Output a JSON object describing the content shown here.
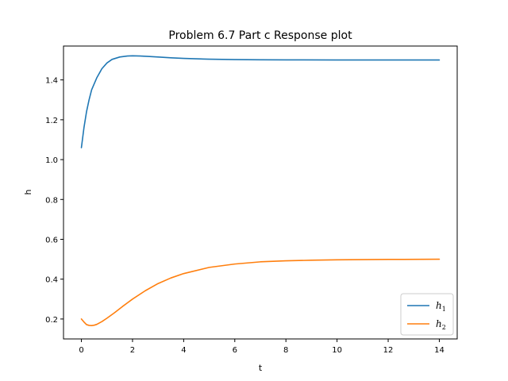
{
  "chart_data": {
    "type": "line",
    "title": "Problem 6.7 Part c Response plot",
    "xlabel": "t",
    "ylabel": "h",
    "xlim": [
      -0.7,
      14.7
    ],
    "ylim": [
      0.1,
      1.57
    ],
    "xticks": [
      0,
      2,
      4,
      6,
      8,
      10,
      12,
      14
    ],
    "yticks": [
      0.2,
      0.4,
      0.6,
      0.8,
      1.0,
      1.2,
      1.4
    ],
    "ytick_labels": [
      "0.2",
      "0.4",
      "0.6",
      "0.8",
      "1.0",
      "1.2",
      "1.4"
    ],
    "grid": false,
    "legend_position": "lower-right",
    "series": [
      {
        "name": "h",
        "subscript": "1",
        "color": "#1f77b4",
        "x": [
          0,
          0.1,
          0.2,
          0.3,
          0.4,
          0.6,
          0.8,
          1.0,
          1.2,
          1.5,
          1.8,
          2.0,
          2.3,
          2.6,
          3.0,
          3.5,
          4.0,
          5.0,
          6.0,
          7.0,
          8.0,
          10.0,
          12.0,
          14.0
        ],
        "values": [
          1.06,
          1.16,
          1.24,
          1.3,
          1.35,
          1.41,
          1.456,
          1.485,
          1.503,
          1.515,
          1.52,
          1.521,
          1.52,
          1.518,
          1.515,
          1.511,
          1.508,
          1.504,
          1.502,
          1.501,
          1.5005,
          1.5002,
          1.5,
          1.5
        ]
      },
      {
        "name": "h",
        "subscript": "2",
        "color": "#ff7f0e",
        "x": [
          0,
          0.1,
          0.2,
          0.3,
          0.4,
          0.5,
          0.6,
          0.8,
          1.0,
          1.3,
          1.6,
          2.0,
          2.5,
          3.0,
          3.5,
          4.0,
          5.0,
          6.0,
          7.0,
          8.0,
          9.0,
          10.0,
          12.0,
          14.0
        ],
        "values": [
          0.2,
          0.185,
          0.172,
          0.168,
          0.167,
          0.169,
          0.173,
          0.187,
          0.204,
          0.232,
          0.262,
          0.3,
          0.342,
          0.378,
          0.406,
          0.428,
          0.459,
          0.476,
          0.487,
          0.492,
          0.495,
          0.497,
          0.499,
          0.5
        ]
      }
    ]
  }
}
